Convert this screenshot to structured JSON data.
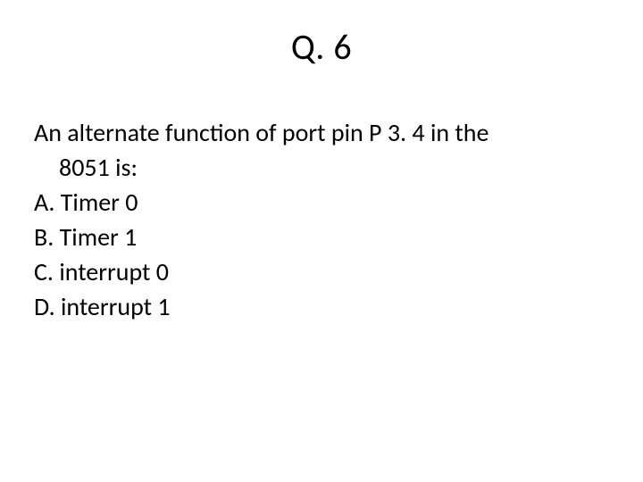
{
  "title": "Q. 6",
  "question_line1": "An alternate function of port pin P 3. 4 in the",
  "question_line2": "8051 is:",
  "options": {
    "a": "A. Timer 0",
    "b": "B. Timer 1",
    "c": "C. interrupt 0",
    "d": "D. interrupt 1"
  },
  "colors": {
    "background": "#ffffff",
    "text": "#000000"
  },
  "fontsizes": {
    "title": 40,
    "body": 28
  }
}
